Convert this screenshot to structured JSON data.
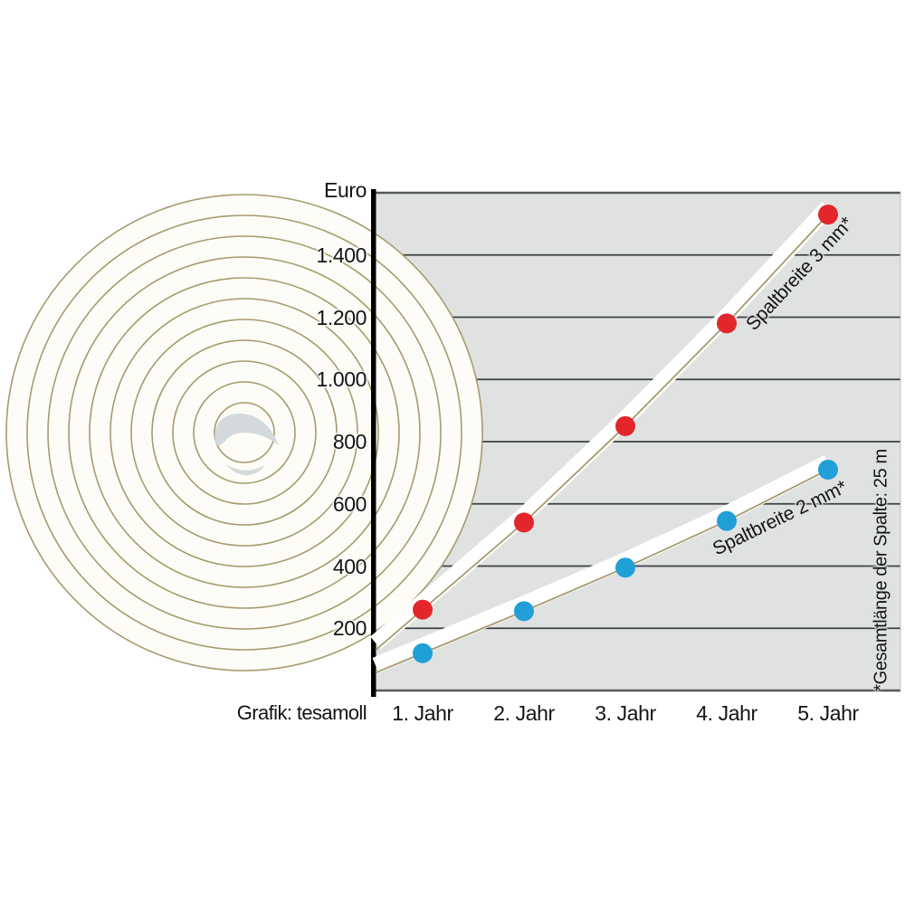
{
  "chart_data": {
    "type": "scatter",
    "description": "Savings in Euro per year for sealing gaps, tesamoll infographic",
    "unit_label": "Euro",
    "categories": [
      "1. Jahr",
      "2. Jahr",
      "3. Jahr",
      "4. Jahr",
      "5. Jahr"
    ],
    "series": [
      {
        "name": "Spaltbreite 3 mm*",
        "color": "#e2262b",
        "values": [
          260,
          540,
          850,
          1180,
          1530
        ]
      },
      {
        "name": "Spaltbreite 2 mm*",
        "color": "#219fd7",
        "values": [
          120,
          255,
          395,
          545,
          710
        ]
      }
    ],
    "ylim": [
      0,
      1600
    ],
    "ytick_values": [
      200,
      400,
      600,
      800,
      1000,
      1200,
      1400
    ],
    "ytick_labels": [
      "200",
      "400",
      "600",
      "800",
      "1.000",
      "1.200",
      "1.400"
    ],
    "grid": "horizontal",
    "legend_position": "labels-along-lines",
    "footnote": "*Gesamtlänge der Spalte: 25 m",
    "credit": "Grafik: tesamoll"
  },
  "colors": {
    "plot_bg": "#dfe2e1",
    "gridline": "#3c4042",
    "plot_border": "#55595b",
    "axis": "#000000",
    "band": "#ffffff",
    "tape_ring": "#a89a6f",
    "tape_fill": "#fdfcf7",
    "curl": "#d4d9dc",
    "text": "#141414"
  }
}
